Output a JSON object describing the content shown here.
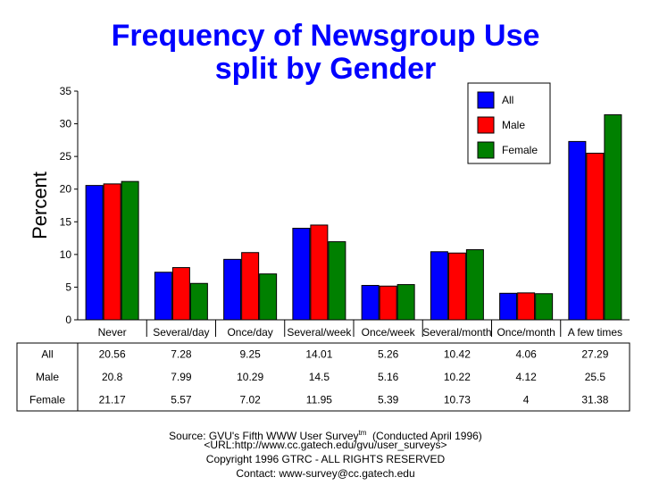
{
  "title_line1": "Frequency of Newsgroup Use",
  "title_line2": "split by Gender",
  "chart_data": {
    "type": "bar",
    "ylabel": "Percent",
    "ylim": [
      0,
      35
    ],
    "yticks": [
      "0",
      "5",
      "10",
      "15",
      "20",
      "25",
      "30",
      "35"
    ],
    "categories": [
      "Never",
      "Several/day",
      "Once/day",
      "Several/week",
      "Once/week",
      "Several/month",
      "Once/month",
      "A few times"
    ],
    "series": [
      {
        "name": "All",
        "color": "#0000ff",
        "values": [
          20.56,
          7.28,
          9.25,
          14.01,
          5.26,
          10.42,
          4.06,
          27.29
        ],
        "labels": [
          "20.56",
          "7.28",
          "9.25",
          "14.01",
          "5.26",
          "10.42",
          "4.06",
          "27.29"
        ]
      },
      {
        "name": "Male",
        "color": "#ff0000",
        "values": [
          20.8,
          7.99,
          10.29,
          14.5,
          5.16,
          10.22,
          4.12,
          25.5
        ],
        "labels": [
          "20.8",
          "7.99",
          "10.29",
          "14.5",
          "5.16",
          "10.22",
          "4.12",
          "25.5"
        ]
      },
      {
        "name": "Female",
        "color": "#008000",
        "values": [
          21.17,
          5.57,
          7.02,
          11.95,
          5.39,
          10.73,
          4,
          31.38
        ],
        "labels": [
          "21.17",
          "5.57",
          "7.02",
          "11.95",
          "5.39",
          "10.73",
          "4",
          "31.38"
        ]
      }
    ],
    "legend_position": "top-right",
    "grid": false
  },
  "footer": {
    "source_pre": "Source: GVU's Fifth WWW User Survey",
    "source_sup": "tm",
    "source_post": "  (Conducted April 1996)",
    "url": "<URL:http://www.cc.gatech.edu/gvu/user_surveys>",
    "copyright": "Copyright 1996 GTRC -  ALL RIGHTS RESERVED",
    "contact": "Contact: www-survey@cc.gatech.edu"
  }
}
